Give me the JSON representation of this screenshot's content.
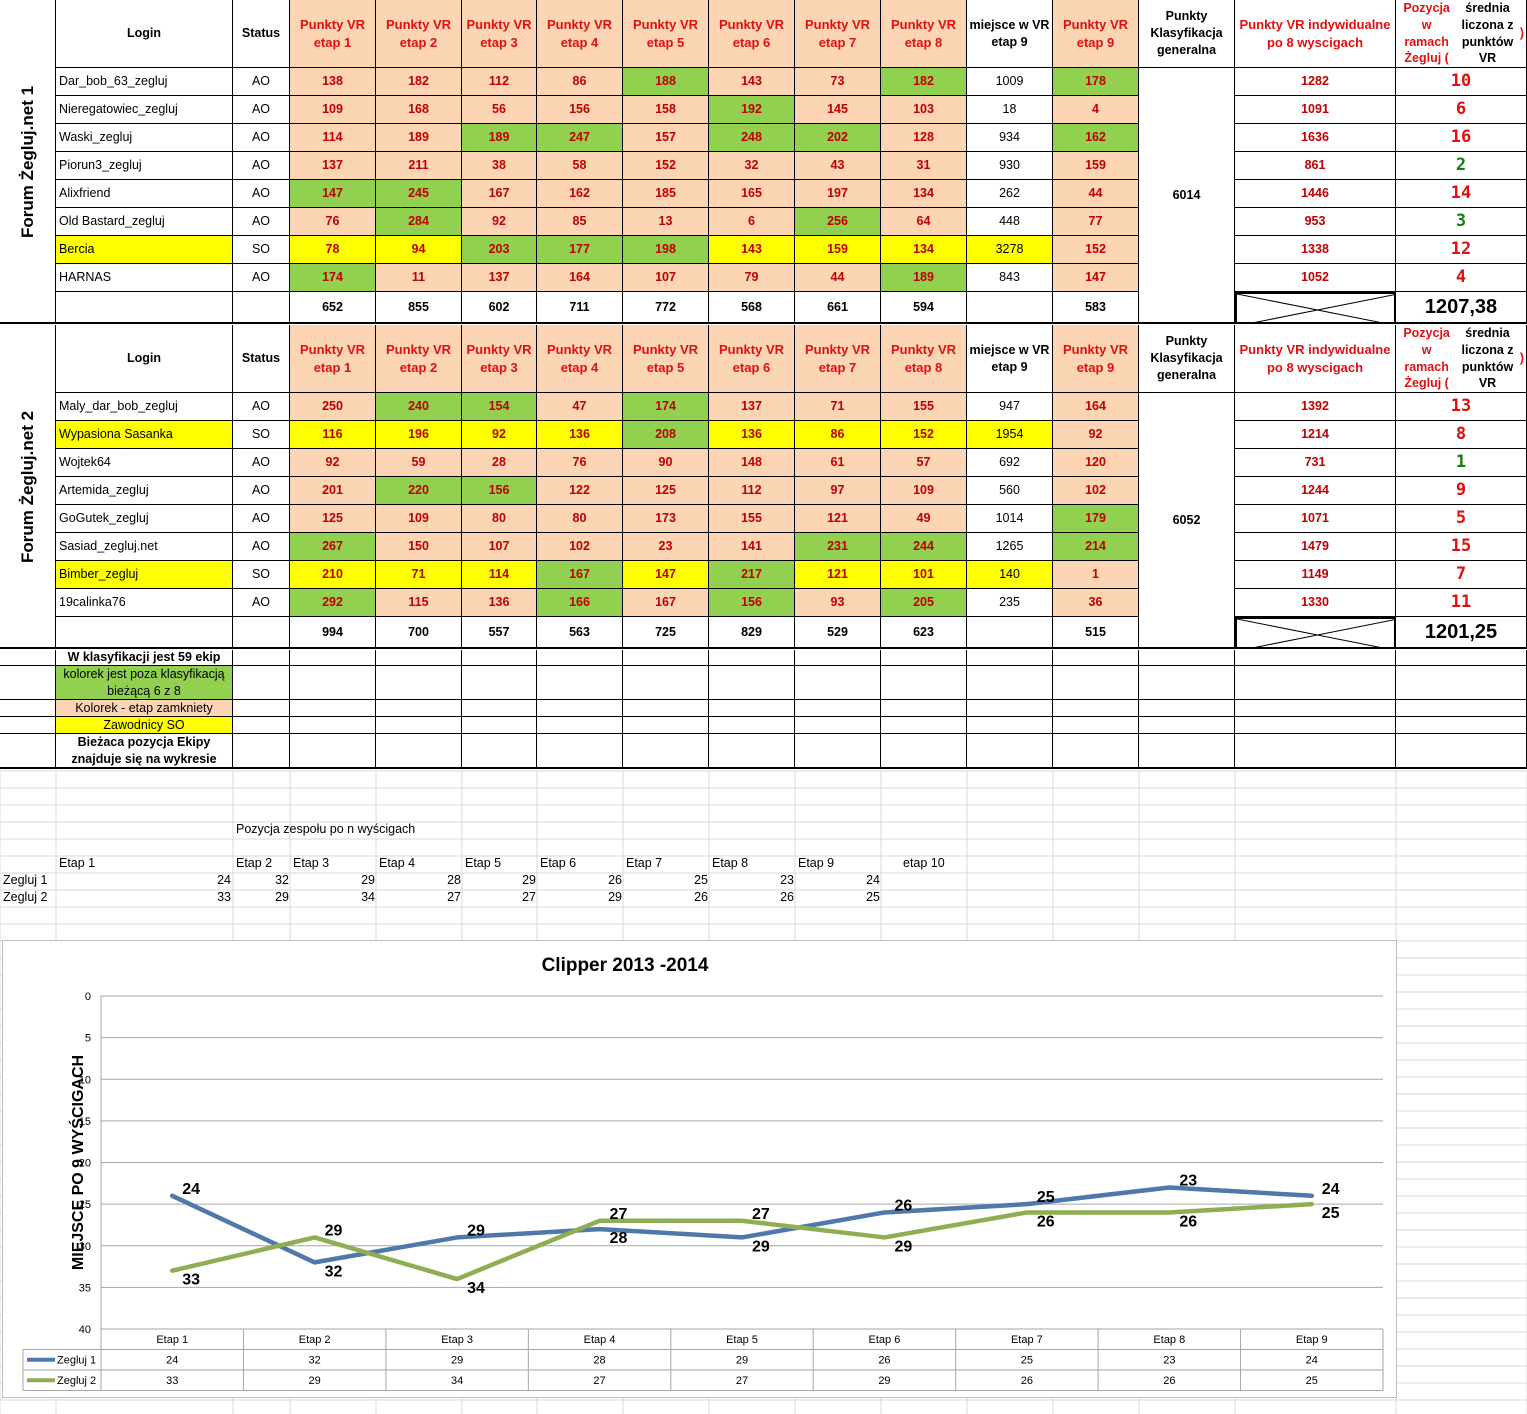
{
  "colors": {
    "peach": "#fcd5b4",
    "green": "#92d050",
    "yellow": "#ffff00",
    "red_text": "#e01010",
    "series1": "#4f79ab",
    "series2": "#8fad52"
  },
  "headers": {
    "login": "Login",
    "status": "Status",
    "stages": [
      "Punkty VR etap 1",
      "Punkty VR etap 2",
      "Punkty VR etap 3",
      "Punkty VR etap 4",
      "Punkty VR etap 5",
      "Punkty VR etap 6",
      "Punkty VR etap 7",
      "Punkty VR etap 8"
    ],
    "miejsce": "miejsce w VR etap 9",
    "etap9": "Punkty VR etap 9",
    "klasyfikacja": "Punkty Klasyfikacja generalna",
    "indywidualne": "Punkty VR indywidualne po 8 wyscigach",
    "pozycja_a": "Pozycja w ramach Żegluj (",
    "pozycja_b": "średnia liczona z punktów VR",
    "pozycja_c": ")"
  },
  "teams": [
    {
      "title": "Forum Żegluj.net 1",
      "klasyfikacja": "6014",
      "average": "1207,38",
      "sums": [
        "652",
        "855",
        "602",
        "711",
        "772",
        "568",
        "661",
        "594",
        "",
        "583"
      ],
      "members": [
        {
          "login": "Dar_bob_63_zegluj",
          "status": "AO",
          "points": [
            "138",
            "182",
            "112",
            "86",
            "188",
            "143",
            "73",
            "182"
          ],
          "colors": [
            "p",
            "p",
            "p",
            "p",
            "g",
            "p",
            "p",
            "g"
          ],
          "miejsce": "1009",
          "miejsce_color": "w",
          "etap9": "178",
          "etap9_color": "g",
          "indiv": "1282",
          "pos": "10",
          "pos_color": "red"
        },
        {
          "login": "Nieregatowiec_zegluj",
          "status": "AO",
          "points": [
            "109",
            "168",
            "56",
            "156",
            "158",
            "192",
            "145",
            "103"
          ],
          "colors": [
            "p",
            "p",
            "p",
            "p",
            "p",
            "g",
            "p",
            "p"
          ],
          "miejsce": "18",
          "miejsce_color": "w",
          "etap9": "4",
          "etap9_color": "p",
          "indiv": "1091",
          "pos": "6",
          "pos_color": "red"
        },
        {
          "login": "Waski_zegluj",
          "status": "AO",
          "points": [
            "114",
            "189",
            "189",
            "247",
            "157",
            "248",
            "202",
            "128"
          ],
          "colors": [
            "p",
            "p",
            "g",
            "g",
            "p",
            "g",
            "g",
            "p"
          ],
          "miejsce": "934",
          "miejsce_color": "w",
          "etap9": "162",
          "etap9_color": "g",
          "indiv": "1636",
          "pos": "16",
          "pos_color": "red"
        },
        {
          "login": "Piorun3_zegluj",
          "status": "AO",
          "points": [
            "137",
            "211",
            "38",
            "58",
            "152",
            "32",
            "43",
            "31"
          ],
          "colors": [
            "p",
            "p",
            "p",
            "p",
            "p",
            "p",
            "p",
            "p"
          ],
          "miejsce": "930",
          "miejsce_color": "w",
          "etap9": "159",
          "etap9_color": "p",
          "indiv": "861",
          "pos": "2",
          "pos_color": "green"
        },
        {
          "login": "Alixfriend",
          "status": "AO",
          "points": [
            "147",
            "245",
            "167",
            "162",
            "185",
            "165",
            "197",
            "134"
          ],
          "colors": [
            "g",
            "g",
            "p",
            "p",
            "p",
            "p",
            "p",
            "p"
          ],
          "miejsce": "262",
          "miejsce_color": "w",
          "etap9": "44",
          "etap9_color": "p",
          "indiv": "1446",
          "pos": "14",
          "pos_color": "red"
        },
        {
          "login": "Old Bastard_zegluj",
          "status": "AO",
          "points": [
            "76",
            "284",
            "92",
            "85",
            "13",
            "6",
            "256",
            "64"
          ],
          "colors": [
            "p",
            "g",
            "p",
            "p",
            "p",
            "p",
            "g",
            "p"
          ],
          "miejsce": "448",
          "miejsce_color": "w",
          "etap9": "77",
          "etap9_color": "p",
          "indiv": "953",
          "pos": "3",
          "pos_color": "green"
        },
        {
          "login": "Bercia",
          "status": "SO",
          "points": [
            "78",
            "94",
            "203",
            "177",
            "198",
            "143",
            "159",
            "134"
          ],
          "colors": [
            "y",
            "y",
            "g",
            "g",
            "g",
            "y",
            "y",
            "y"
          ],
          "miejsce": "3278",
          "miejsce_color": "y",
          "etap9": "152",
          "etap9_color": "p",
          "indiv": "1338",
          "pos": "12",
          "pos_color": "red",
          "login_color": "y"
        },
        {
          "login": "HARNAS",
          "status": "AO",
          "points": [
            "174",
            "11",
            "137",
            "164",
            "107",
            "79",
            "44",
            "189"
          ],
          "colors": [
            "g",
            "p",
            "p",
            "p",
            "p",
            "p",
            "p",
            "g"
          ],
          "miejsce": "843",
          "miejsce_color": "w",
          "etap9": "147",
          "etap9_color": "p",
          "indiv": "1052",
          "pos": "4",
          "pos_color": "red"
        }
      ]
    },
    {
      "title": "Forum Żegluj.net 2",
      "klasyfikacja": "6052",
      "average": "1201,25",
      "sums": [
        "994",
        "700",
        "557",
        "563",
        "725",
        "829",
        "529",
        "623",
        "",
        "515"
      ],
      "members": [
        {
          "login": "Maly_dar_bob_zegluj",
          "status": "AO",
          "points": [
            "250",
            "240",
            "154",
            "47",
            "174",
            "137",
            "71",
            "155"
          ],
          "colors": [
            "p",
            "g",
            "g",
            "p",
            "g",
            "p",
            "p",
            "p"
          ],
          "miejsce": "947",
          "miejsce_color": "w",
          "etap9": "164",
          "etap9_color": "p",
          "indiv": "1392",
          "pos": "13",
          "pos_color": "red"
        },
        {
          "login": "Wypasiona Sasanka",
          "status": "SO",
          "points": [
            "116",
            "196",
            "92",
            "136",
            "208",
            "136",
            "86",
            "152"
          ],
          "colors": [
            "y",
            "y",
            "y",
            "y",
            "g",
            "y",
            "y",
            "y"
          ],
          "miejsce": "1954",
          "miejsce_color": "y",
          "etap9": "92",
          "etap9_color": "p",
          "indiv": "1214",
          "pos": "8",
          "pos_color": "red",
          "login_color": "y"
        },
        {
          "login": "Wojtek64",
          "status": "AO",
          "points": [
            "92",
            "59",
            "28",
            "76",
            "90",
            "148",
            "61",
            "57"
          ],
          "colors": [
            "p",
            "p",
            "p",
            "p",
            "p",
            "p",
            "p",
            "p"
          ],
          "miejsce": "692",
          "miejsce_color": "w",
          "etap9": "120",
          "etap9_color": "p",
          "indiv": "731",
          "pos": "1",
          "pos_color": "green"
        },
        {
          "login": "Artemida_zegluj",
          "status": "AO",
          "points": [
            "201",
            "220",
            "156",
            "122",
            "125",
            "112",
            "97",
            "109"
          ],
          "colors": [
            "p",
            "g",
            "g",
            "p",
            "p",
            "p",
            "p",
            "p"
          ],
          "miejsce": "560",
          "miejsce_color": "w",
          "etap9": "102",
          "etap9_color": "p",
          "indiv": "1244",
          "pos": "9",
          "pos_color": "red"
        },
        {
          "login": "GoGutek_zegluj",
          "status": "AO",
          "points": [
            "125",
            "109",
            "80",
            "80",
            "173",
            "155",
            "121",
            "49"
          ],
          "colors": [
            "p",
            "p",
            "p",
            "p",
            "p",
            "p",
            "p",
            "p"
          ],
          "miejsce": "1014",
          "miejsce_color": "w",
          "etap9": "179",
          "etap9_color": "g",
          "indiv": "1071",
          "pos": "5",
          "pos_color": "red"
        },
        {
          "login": "Sasiad_zegluj.net",
          "status": "AO",
          "points": [
            "267",
            "150",
            "107",
            "102",
            "23",
            "141",
            "231",
            "244"
          ],
          "colors": [
            "g",
            "p",
            "p",
            "p",
            "p",
            "p",
            "g",
            "g"
          ],
          "miejsce": "1265",
          "miejsce_color": "w",
          "etap9": "214",
          "etap9_color": "g",
          "indiv": "1479",
          "pos": "15",
          "pos_color": "red"
        },
        {
          "login": "Bimber_zegluj",
          "status": "SO",
          "points": [
            "210",
            "71",
            "114",
            "167",
            "147",
            "217",
            "121",
            "101"
          ],
          "colors": [
            "y",
            "y",
            "y",
            "g",
            "y",
            "g",
            "y",
            "y"
          ],
          "miejsce": "140",
          "miejsce_color": "y",
          "etap9": "1",
          "etap9_color": "p",
          "indiv": "1149",
          "pos": "7",
          "pos_color": "red",
          "login_color": "y"
        },
        {
          "login": "19calinka76",
          "status": "AO",
          "points": [
            "292",
            "115",
            "136",
            "166",
            "167",
            "156",
            "93",
            "205"
          ],
          "colors": [
            "g",
            "p",
            "p",
            "g",
            "p",
            "g",
            "p",
            "g"
          ],
          "miejsce": "235",
          "miejsce_color": "w",
          "etap9": "36",
          "etap9_color": "p",
          "indiv": "1330",
          "pos": "11",
          "pos_color": "red"
        }
      ]
    }
  ],
  "legend": {
    "ekip": "W klasyfikacji jest 59 ekip",
    "green_note": "kolorek jest  poza klasyfikacją bieżącą 6 z 8",
    "peach_note": "Kolorek - etap zamkniety",
    "yellow_note": "Zawodnicy SO",
    "position_note": "Bieżaca pozycja Ekipy znajduje się na wykresie"
  },
  "position_table": {
    "title": "Pozycja zespołu po n wyścigach",
    "stage_headers": [
      "Etap 1",
      "Etap 2",
      "Etap 3",
      "Etap 4",
      "Etap 5",
      "Etap 6",
      "Etap 7",
      "Etap 8",
      "Etap 9",
      "etap 10"
    ],
    "rows": [
      {
        "label": "Zegluj 1",
        "values": [
          "24",
          "32",
          "29",
          "28",
          "29",
          "26",
          "25",
          "23",
          "24"
        ]
      },
      {
        "label": "Zegluj 2",
        "values": [
          "33",
          "29",
          "34",
          "27",
          "27",
          "29",
          "26",
          "26",
          "25"
        ]
      }
    ]
  },
  "chart_data": {
    "type": "line",
    "title": "Clipper 2013 -2014",
    "ylabel": "MIEJSCE PO 9 WYŚCIGACH",
    "xlabel": "",
    "categories": [
      "Etap 1",
      "Etap 2",
      "Etap 3",
      "Etap 4",
      "Etap 5",
      "Etap 6",
      "Etap 7",
      "Etap 8",
      "Etap 9"
    ],
    "ylim": [
      0,
      40
    ],
    "y_reversed": true,
    "y_ticks": [
      0,
      5,
      10,
      15,
      20,
      25,
      30,
      35,
      40
    ],
    "grid": true,
    "legend": "data-table-below",
    "series": [
      {
        "name": "Zegluj 1",
        "color": "#4f79ab",
        "values": [
          24,
          32,
          29,
          28,
          29,
          26,
          25,
          23,
          24
        ]
      },
      {
        "name": "Zegluj 2",
        "color": "#8fad52",
        "values": [
          33,
          29,
          34,
          27,
          27,
          29,
          26,
          26,
          25
        ]
      }
    ]
  }
}
